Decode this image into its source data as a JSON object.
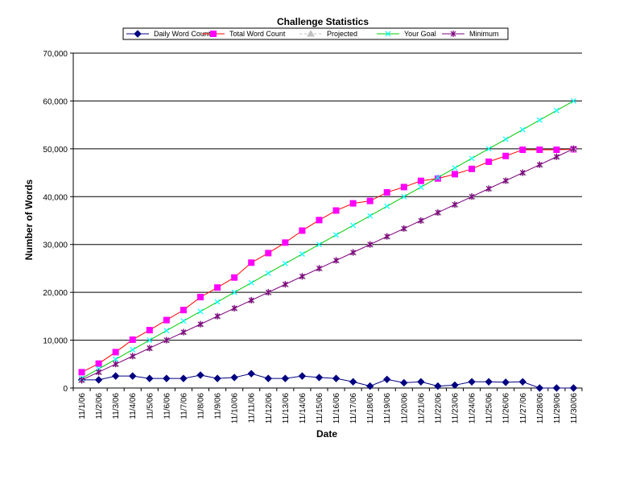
{
  "chart_data": {
    "type": "line",
    "title": "Challenge Statistics",
    "xlabel": "Date",
    "ylabel": "Number of Words",
    "ylim": [
      0,
      70000
    ],
    "ytick_labels": [
      "0",
      "10,000",
      "20,000",
      "30,000",
      "40,000",
      "50,000",
      "60,000",
      "70,000"
    ],
    "grid": "horizontal",
    "legend_position": "top",
    "categories": [
      "11/1/06",
      "11/2/06",
      "11/3/06",
      "11/4/06",
      "11/5/06",
      "11/6/06",
      "11/7/06",
      "11/8/06",
      "11/9/06",
      "11/10/06",
      "11/11/06",
      "11/12/06",
      "11/13/06",
      "11/14/06",
      "11/15/06",
      "11/16/06",
      "11/17/06",
      "11/18/06",
      "11/19/06",
      "11/20/06",
      "11/21/06",
      "11/22/06",
      "11/23/06",
      "11/24/06",
      "11/25/06",
      "11/26/06",
      "11/27/06",
      "11/28/06",
      "11/29/06",
      "11/30/06"
    ],
    "series": [
      {
        "name": "Daily Word Count",
        "color": "#000080",
        "marker": "diamond",
        "values": [
          1700,
          1700,
          2500,
          2500,
          2000,
          2000,
          2000,
          2700,
          2000,
          2200,
          3000,
          2000,
          2000,
          2500,
          2200,
          2000,
          1300,
          400,
          1800,
          1100,
          1300,
          400,
          600,
          1300,
          1300,
          1200,
          1300,
          0,
          0,
          0
        ]
      },
      {
        "name": "Total Word Count",
        "color": "#ff00ff",
        "line_color": "#ff0000",
        "marker": "square",
        "values": [
          3300,
          5100,
          7500,
          10100,
          12100,
          14200,
          16300,
          19000,
          21000,
          23100,
          26200,
          28200,
          30400,
          32900,
          35100,
          37100,
          38600,
          39100,
          40900,
          42000,
          43300,
          43800,
          44700,
          45800,
          47300,
          48500,
          49800,
          49800,
          49800,
          49900
        ]
      },
      {
        "name": "Projected",
        "color": "#c0c0c0",
        "marker": "triangle",
        "values": [
          1667,
          3333,
          5000,
          6667,
          8333,
          10000,
          11667,
          13333,
          15000,
          16667,
          18333,
          20000,
          21667,
          23333,
          25000,
          26667,
          28333,
          30000,
          31667,
          33333,
          35000,
          36667,
          38333,
          40000,
          41667,
          43333,
          45000,
          46667,
          48333,
          50000
        ]
      },
      {
        "name": "Your Goal",
        "color": "#00ffff",
        "line_color": "#00cc00",
        "marker": "x",
        "values": [
          2000,
          4000,
          6000,
          8000,
          10000,
          12000,
          14000,
          16000,
          18000,
          20000,
          22000,
          24000,
          26000,
          28000,
          30000,
          32000,
          34000,
          36000,
          38000,
          40000,
          42000,
          44000,
          46000,
          48000,
          50000,
          52000,
          54000,
          56000,
          58000,
          60000
        ]
      },
      {
        "name": "Minimum",
        "color": "#800080",
        "marker": "star",
        "values": [
          1667,
          3333,
          5000,
          6667,
          8333,
          10000,
          11667,
          13333,
          15000,
          16667,
          18333,
          20000,
          21667,
          23333,
          25000,
          26667,
          28333,
          30000,
          31667,
          33333,
          35000,
          36667,
          38333,
          40000,
          41667,
          43333,
          45000,
          46667,
          48333,
          50000
        ]
      }
    ]
  }
}
